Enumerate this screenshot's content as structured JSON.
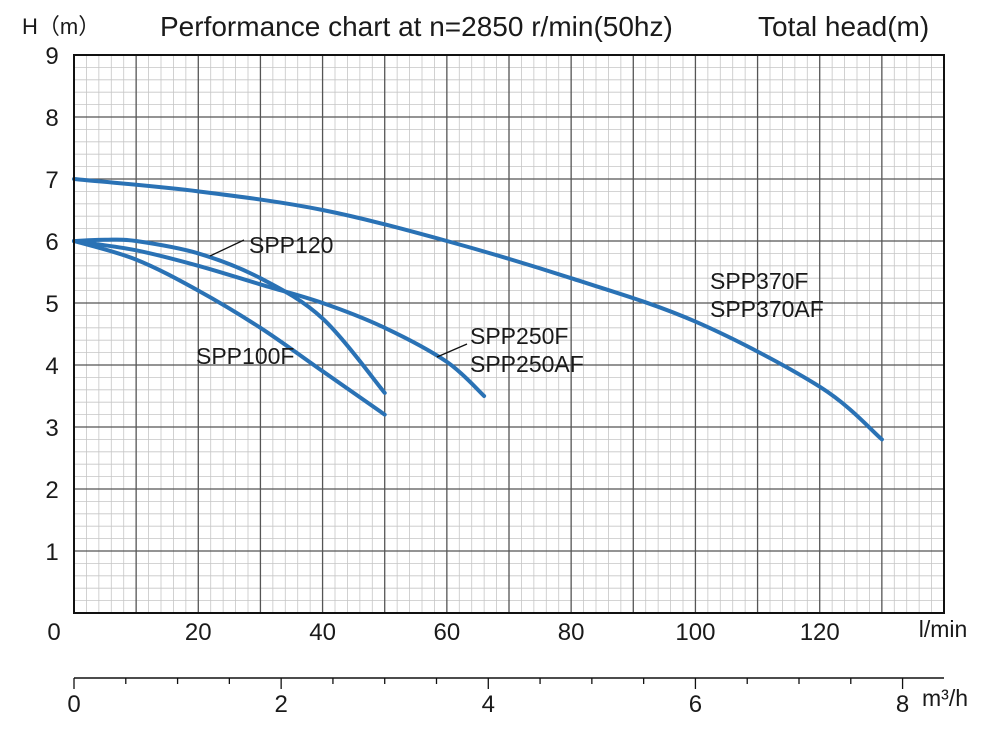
{
  "chart_data": {
    "type": "line",
    "title": "Performance chart at n=2850 r/min(50hz)",
    "subtitle": "Total head(m)",
    "ylabel": "H（m）",
    "xlabel": "l/min",
    "x2label": "m³/h",
    "ylim": [
      0,
      9
    ],
    "xlim": [
      0,
      140
    ],
    "x2lim": [
      0,
      8.4
    ],
    "grid": true,
    "y_ticks": [
      "1",
      "2",
      "3",
      "4",
      "5",
      "6",
      "7",
      "8",
      "9"
    ],
    "x_ticks": [
      "20",
      "40",
      "60",
      "80",
      "100",
      "120"
    ],
    "x_zero_label": "0",
    "x2_ticks": [
      "0",
      "2",
      "4",
      "6",
      "8"
    ],
    "line_color": "#2a72b5",
    "series": [
      {
        "name": "SPP100F",
        "x": [
          0,
          10,
          20,
          30,
          40,
          50
        ],
        "y": [
          6.0,
          5.7,
          5.2,
          4.6,
          3.9,
          3.2
        ],
        "labels": [
          "SPP100F"
        ]
      },
      {
        "name": "SPP120",
        "x": [
          0,
          5,
          10,
          20,
          30,
          40,
          50
        ],
        "y": [
          6.0,
          6.02,
          6.0,
          5.8,
          5.4,
          4.75,
          3.55
        ],
        "labels": [
          "SPP120"
        ]
      },
      {
        "name": "SPP250F / SPP250AF",
        "x": [
          0,
          10,
          20,
          30,
          40,
          50,
          60,
          66
        ],
        "y": [
          6.0,
          5.85,
          5.6,
          5.3,
          5.0,
          4.6,
          4.05,
          3.5
        ],
        "labels": [
          "SPP250F",
          "SPP250AF"
        ]
      },
      {
        "name": "SPP370F / SPP370AF",
        "x": [
          0,
          20,
          40,
          60,
          80,
          100,
          120,
          130
        ],
        "y": [
          7.0,
          6.8,
          6.5,
          6.0,
          5.4,
          4.7,
          3.65,
          2.8
        ],
        "labels": [
          "SPP370F",
          "SPP370AF"
        ]
      }
    ]
  }
}
